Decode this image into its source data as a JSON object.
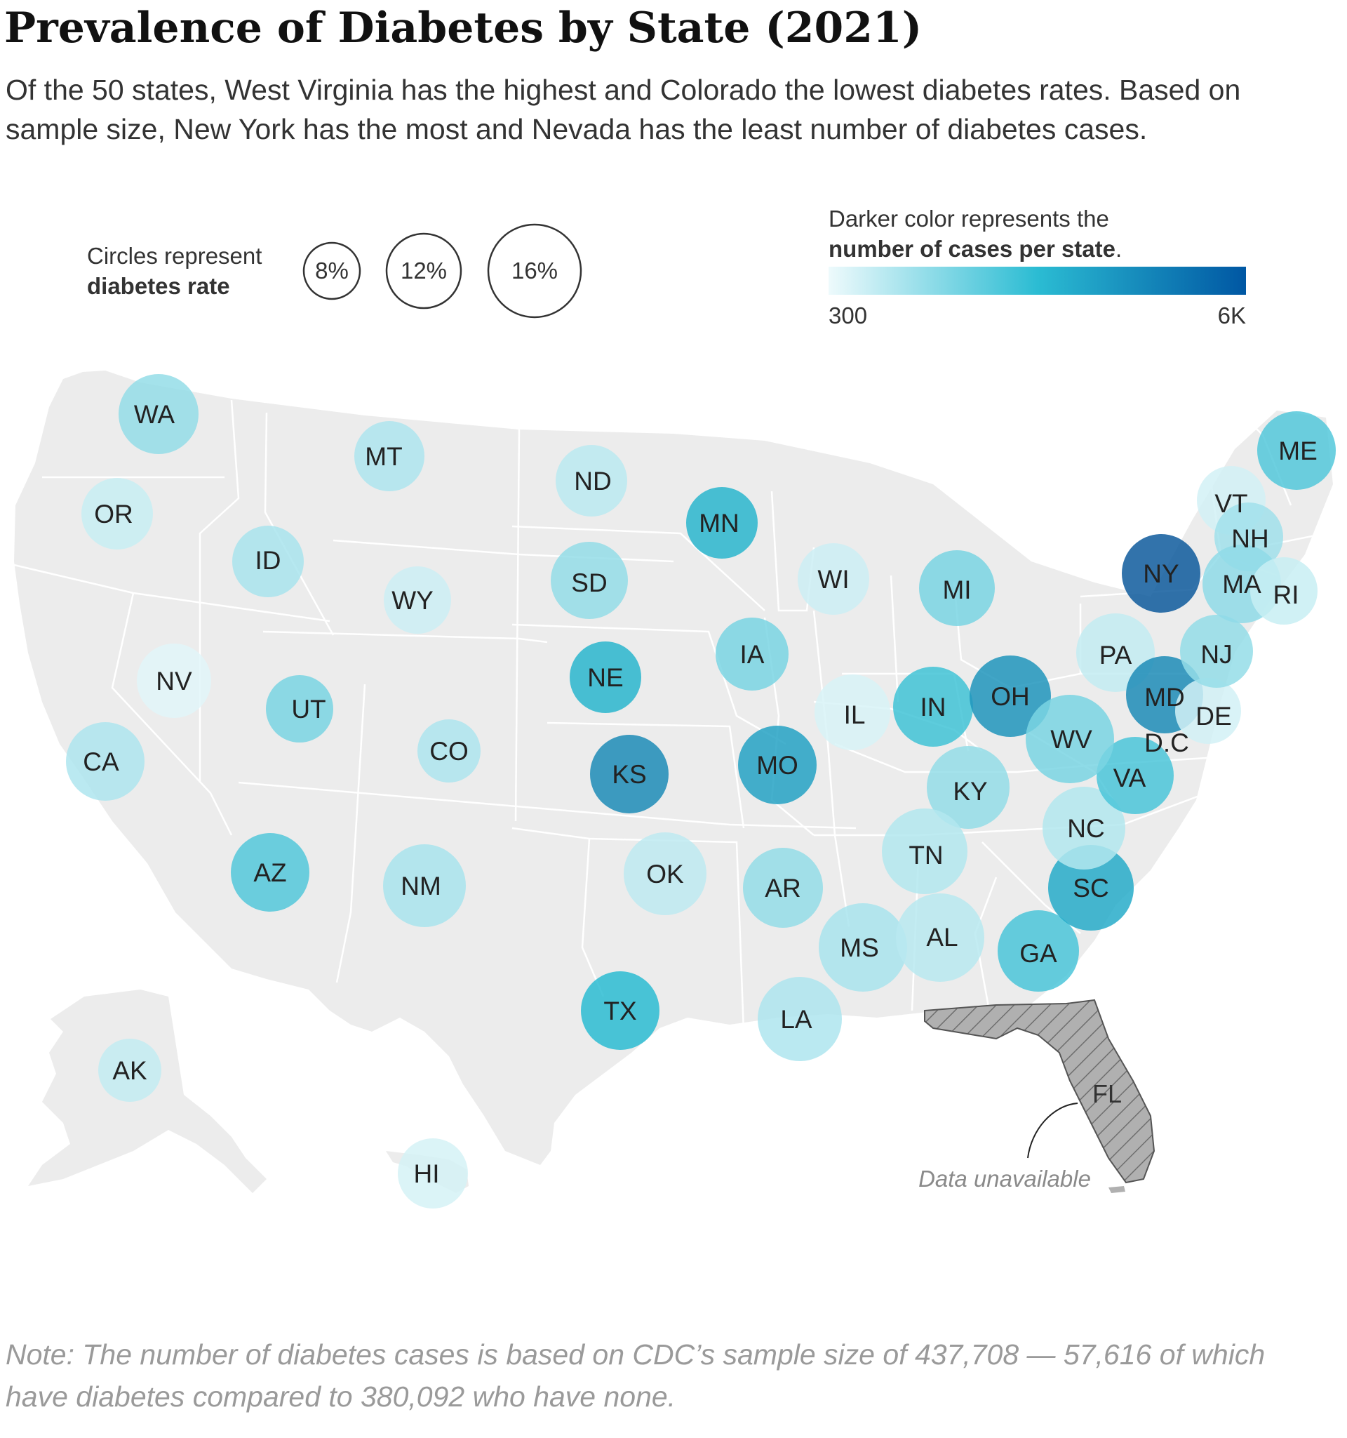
{
  "header": {
    "title": "Prevalence of Diabetes by State (2021)",
    "subtitle": "Of the 50 states, West Virginia has the highest and Colorado the lowest diabetes rates. Based on sample size, New York has the most and Nevada has the least number of diabetes cases."
  },
  "legend": {
    "size": {
      "line1": "Circles represent",
      "line2": "diabetes rate",
      "examples": [
        "8%",
        "12%",
        "16%"
      ]
    },
    "color": {
      "line1": "Darker color represents the",
      "line2_bold": "number of cases per state",
      "line2_end": ".",
      "min_label": "300",
      "max_label": "6K",
      "gradient_colors": [
        "#eefafc",
        "#2bbcd3",
        "#0057a3"
      ]
    }
  },
  "florida": {
    "label": "FL",
    "note": "Data unavailable",
    "fill": "#b0b0b0"
  },
  "note": "Note: The number of diabetes cases is based on CDC’s sample size of 437,708 — 57,616 of which have diabetes compared to 380,092 who have none.",
  "colors": {
    "land": "#ececec",
    "borders": "#ffffff",
    "scale_light": "#e2f6f9",
    "scale_mid": "#2cbcd2",
    "scale_dark": "#0e5b9c"
  },
  "chart_data": {
    "type": "map",
    "size_encodes": "diabetes rate",
    "color_encodes": "number of cases per state",
    "color_range": [
      300,
      6000
    ],
    "states": [
      {
        "abbr": "WA",
        "level": 0.3
      },
      {
        "abbr": "OR",
        "level": 0.1
      },
      {
        "abbr": "CA",
        "level": 0.2
      },
      {
        "abbr": "AK",
        "level": 0.12
      },
      {
        "abbr": "HI",
        "level": 0.05
      },
      {
        "abbr": "ID",
        "level": 0.22
      },
      {
        "abbr": "NV",
        "level": 0.0
      },
      {
        "abbr": "MT",
        "level": 0.2
      },
      {
        "abbr": "WY",
        "level": 0.08
      },
      {
        "abbr": "UT",
        "level": 0.4
      },
      {
        "abbr": "AZ",
        "level": 0.55
      },
      {
        "abbr": "CO",
        "level": 0.2
      },
      {
        "abbr": "NM",
        "level": 0.22
      },
      {
        "abbr": "ND",
        "level": 0.15
      },
      {
        "abbr": "SD",
        "level": 0.3
      },
      {
        "abbr": "NE",
        "level": 0.72
      },
      {
        "abbr": "KS",
        "level": 0.85
      },
      {
        "abbr": "OK",
        "level": 0.14
      },
      {
        "abbr": "TX",
        "level": 0.7
      },
      {
        "abbr": "MN",
        "level": 0.72
      },
      {
        "abbr": "IA",
        "level": 0.4
      },
      {
        "abbr": "MO",
        "level": 0.78
      },
      {
        "abbr": "AR",
        "level": 0.3
      },
      {
        "abbr": "LA",
        "level": 0.2
      },
      {
        "abbr": "WI",
        "level": 0.08
      },
      {
        "abbr": "IL",
        "level": 0.04
      },
      {
        "abbr": "MI",
        "level": 0.4
      },
      {
        "abbr": "IN",
        "level": 0.62
      },
      {
        "abbr": "OH",
        "level": 0.82
      },
      {
        "abbr": "KY",
        "level": 0.3
      },
      {
        "abbr": "TN",
        "level": 0.18
      },
      {
        "abbr": "MS",
        "level": 0.22
      },
      {
        "abbr": "AL",
        "level": 0.16
      },
      {
        "abbr": "GA",
        "level": 0.58
      },
      {
        "abbr": "SC",
        "level": 0.75
      },
      {
        "abbr": "NC",
        "level": 0.18
      },
      {
        "abbr": "VA",
        "level": 0.58
      },
      {
        "abbr": "WV",
        "level": 0.4
      },
      {
        "abbr": "PA",
        "level": 0.12
      },
      {
        "abbr": "NY",
        "level": 1.0
      },
      {
        "abbr": "MD",
        "level": 0.85
      },
      {
        "abbr": "DE",
        "level": 0.06
      },
      {
        "abbr": "D.C",
        "level": 0.0
      },
      {
        "abbr": "NJ",
        "level": 0.3
      },
      {
        "abbr": "ME",
        "level": 0.55
      },
      {
        "abbr": "VT",
        "level": 0.06
      },
      {
        "abbr": "NH",
        "level": 0.25
      },
      {
        "abbr": "MA",
        "level": 0.32
      },
      {
        "abbr": "RI",
        "level": 0.1
      }
    ]
  }
}
